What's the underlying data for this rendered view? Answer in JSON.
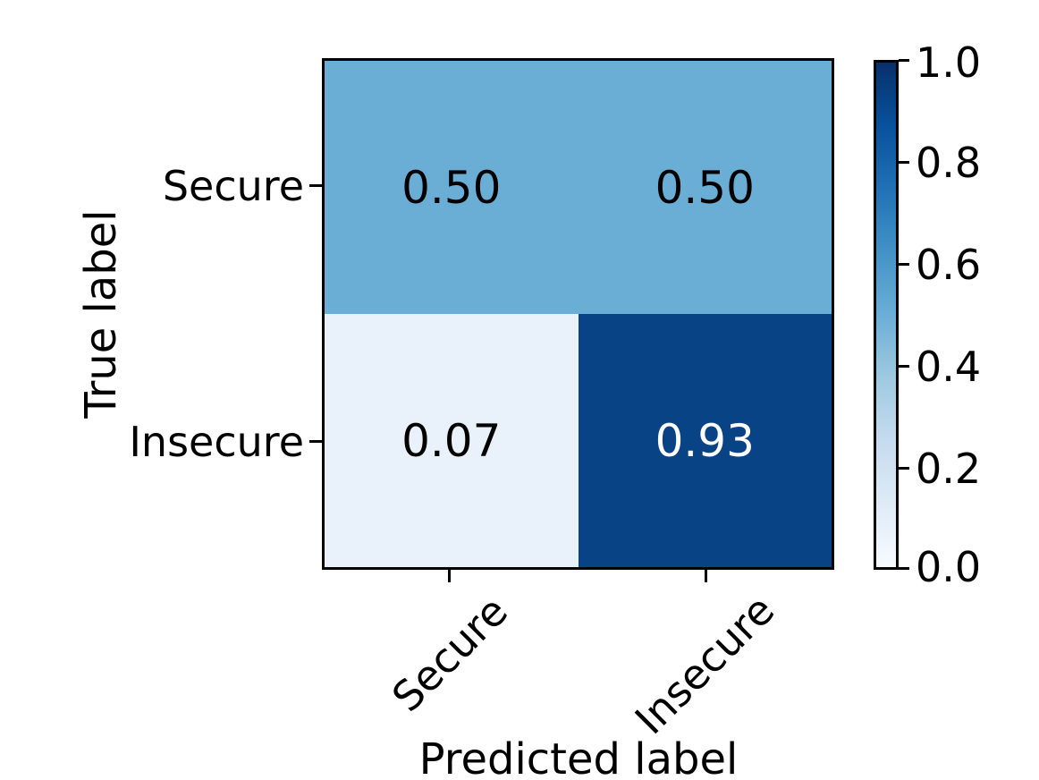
{
  "chart_data": {
    "type": "heatmap",
    "title": "",
    "xlabel": "Predicted label",
    "ylabel": "True label",
    "x_categories": [
      "Secure",
      "Insecure"
    ],
    "y_categories": [
      "Secure",
      "Insecure"
    ],
    "values": [
      [
        0.5,
        0.5
      ],
      [
        0.07,
        0.93
      ]
    ],
    "cell_labels": [
      [
        "0.50",
        "0.50"
      ],
      [
        "0.07",
        "0.93"
      ]
    ],
    "cell_colors": [
      [
        "#6aaed6",
        "#6aaed6"
      ],
      [
        "#e9f2fa",
        "#084386"
      ]
    ],
    "cell_text_colors": [
      [
        "#000000",
        "#000000"
      ],
      [
        "#000000",
        "#ffffff"
      ]
    ],
    "colormap": "Blues",
    "colormap_stops": [
      "#f7fbff",
      "#deebf7",
      "#c6dbef",
      "#9ecae1",
      "#6baed6",
      "#4292c6",
      "#2171b5",
      "#08519c",
      "#08306b"
    ],
    "colorbar_range": [
      0.0,
      1.0
    ],
    "colorbar_tick_values": [
      1.0,
      0.8,
      0.6,
      0.4,
      0.2,
      0.0
    ],
    "colorbar_tick_labels": [
      "1.0",
      "0.8",
      "0.6",
      "0.4",
      "0.2",
      "0.0"
    ],
    "grid": false,
    "legend": false
  }
}
